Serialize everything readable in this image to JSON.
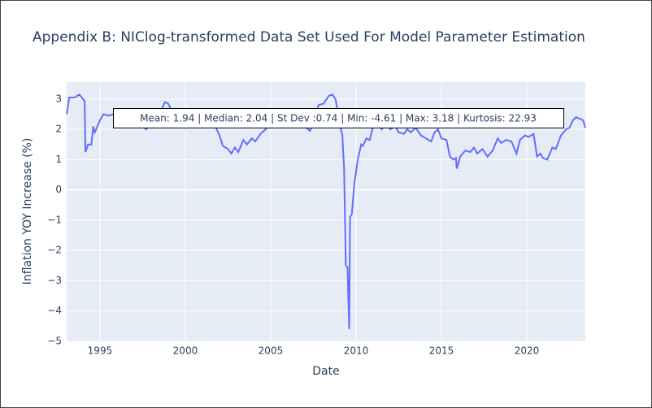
{
  "chart_data": {
    "type": "line",
    "title": "Appendix B: NIClog-transformed Data Set Used For Model Parameter Estimation",
    "x_label": "Date",
    "y_label": "Inflation YOY Increase (%)",
    "annotation": "Mean: 1.94 | Median: 2.04 | St Dev :0.74 | Min: -4.61 | Max: 3.18 | Kurtosis: 22.93",
    "color": "#636efa",
    "grid": true,
    "xlim": [
      1993.05,
      2023.43
    ],
    "xticks": [
      1995,
      2000,
      2005,
      2010,
      2015,
      2020
    ],
    "ylim": [
      -5,
      3.56
    ],
    "yticks": [
      {
        "value": -5,
        "label": "−5"
      },
      {
        "value": -4,
        "label": "−4"
      },
      {
        "value": -3,
        "label": "−3"
      },
      {
        "value": -2,
        "label": "−2"
      },
      {
        "value": -1,
        "label": "−1"
      },
      0,
      1,
      2,
      3
    ],
    "x": [
      1993.05,
      1993.2,
      1993.5,
      1993.8,
      1994.0,
      1994.1,
      1994.15,
      1994.3,
      1994.5,
      1994.6,
      1994.7,
      1995.0,
      1995.2,
      1995.5,
      1995.8,
      1996.0,
      1996.5,
      1997.0,
      1997.5,
      1997.7,
      1998.0,
      1998.5,
      1998.8,
      1999.0,
      1999.3,
      1999.7,
      2000.0,
      2000.5,
      2001.0,
      2001.5,
      2001.8,
      2002.0,
      2002.2,
      2002.5,
      2002.7,
      2002.9,
      2003.1,
      2003.4,
      2003.6,
      2003.9,
      2004.1,
      2004.4,
      2004.7,
      2005.0,
      2005.5,
      2006.0,
      2006.5,
      2007.0,
      2007.3,
      2007.6,
      2007.8,
      2008.1,
      2008.4,
      2008.6,
      2008.8,
      2009.0,
      2009.2,
      2009.3,
      2009.4,
      2009.5,
      2009.6,
      2009.65,
      2009.75,
      2009.9,
      2010.1,
      2010.3,
      2010.4,
      2010.6,
      2010.8,
      2011.0,
      2011.3,
      2011.5,
      2011.8,
      2012.0,
      2012.3,
      2012.5,
      2012.8,
      2013.0,
      2013.2,
      2013.5,
      2013.8,
      2014.1,
      2014.4,
      2014.6,
      2014.8,
      2015.0,
      2015.3,
      2015.5,
      2015.7,
      2015.85,
      2015.9,
      2016.1,
      2016.4,
      2016.7,
      2016.9,
      2017.1,
      2017.4,
      2017.7,
      2018.0,
      2018.3,
      2018.5,
      2018.8,
      2019.1,
      2019.4,
      2019.6,
      2019.9,
      2020.1,
      2020.4,
      2020.6,
      2020.8,
      2020.95,
      2021.2,
      2021.5,
      2021.7,
      2022.0,
      2022.3,
      2022.5,
      2022.7,
      2022.9,
      2023.1,
      2023.3,
      2023.43
    ],
    "values": [
      2.5,
      3.05,
      3.05,
      3.15,
      3.0,
      2.95,
      1.25,
      1.5,
      1.5,
      2.1,
      1.9,
      2.3,
      2.5,
      2.45,
      2.5,
      2.2,
      2.3,
      2.2,
      2.1,
      2.0,
      2.2,
      2.5,
      2.9,
      2.85,
      2.5,
      2.3,
      2.05,
      2.3,
      2.2,
      2.1,
      2.05,
      1.8,
      1.45,
      1.35,
      1.2,
      1.4,
      1.25,
      1.65,
      1.5,
      1.7,
      1.6,
      1.85,
      2.0,
      2.2,
      2.3,
      2.35,
      2.2,
      2.1,
      1.95,
      2.3,
      2.8,
      2.85,
      3.1,
      3.15,
      3.0,
      2.3,
      1.8,
      0.7,
      -2.5,
      -2.55,
      -4.6,
      -0.9,
      -0.8,
      0.2,
      1.0,
      1.5,
      1.45,
      1.7,
      1.65,
      2.1,
      2.3,
      2.0,
      2.2,
      2.0,
      2.1,
      1.9,
      1.85,
      2.0,
      1.9,
      2.05,
      1.8,
      1.7,
      1.6,
      1.9,
      2.0,
      1.7,
      1.65,
      1.1,
      1.0,
      1.05,
      0.7,
      1.1,
      1.3,
      1.25,
      1.4,
      1.2,
      1.35,
      1.1,
      1.3,
      1.7,
      1.55,
      1.65,
      1.6,
      1.2,
      1.65,
      1.8,
      1.75,
      1.85,
      1.1,
      1.2,
      1.05,
      1.0,
      1.4,
      1.35,
      1.8,
      2.0,
      2.05,
      2.3,
      2.4,
      2.35,
      2.3,
      2.05
    ]
  }
}
